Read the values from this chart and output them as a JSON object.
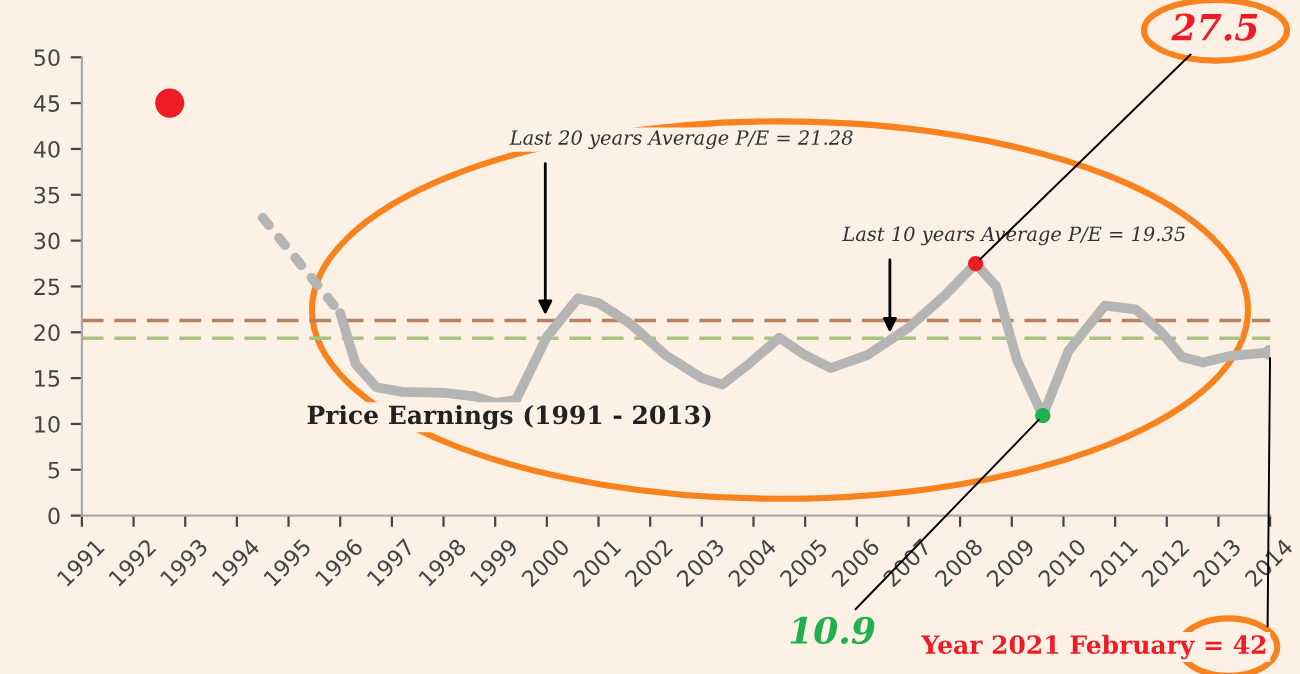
{
  "chart_data": {
    "type": "line",
    "title": "Price Earnings (1991 - 2013)",
    "xlim": [
      1991,
      2014
    ],
    "xticks": [
      1991,
      1992,
      1993,
      1994,
      1995,
      1996,
      1997,
      1998,
      1999,
      2000,
      2001,
      2002,
      2003,
      2004,
      2005,
      2006,
      2007,
      2008,
      2009,
      2010,
      2011,
      2012,
      2013,
      2014
    ],
    "ylim": [
      0,
      50
    ],
    "yticks": [
      0,
      5,
      10,
      15,
      20,
      25,
      30,
      35,
      40,
      45,
      50
    ],
    "grid": false,
    "series": [
      {
        "color": "#b5b5b5",
        "line_style": "dotted",
        "x": [
          1994.5,
          1996.0
        ],
        "values": [
          32.5,
          22.1
        ]
      },
      {
        "color": "#b5b5b5",
        "line_style": "solid",
        "x": [
          1996.0,
          1996.3,
          1996.7,
          1997.2,
          1998.0,
          1998.6,
          1999.0,
          1999.4,
          2000.0,
          2000.6,
          2001.0,
          2001.6,
          2002.3,
          2003.0,
          2003.4,
          2003.9,
          2004.5,
          2005.0,
          2005.5,
          2006.2,
          2007.0,
          2007.7,
          2008.3,
          2008.7,
          2009.1,
          2009.6,
          2010.1,
          2010.8,
          2011.4,
          2011.9,
          2012.3,
          2012.7,
          2013.2,
          2014.0
        ],
        "values": [
          22.1,
          16.5,
          14.0,
          13.5,
          13.4,
          13.0,
          12.3,
          12.6,
          19.5,
          23.7,
          23.2,
          21.0,
          17.5,
          15.0,
          14.3,
          16.5,
          19.4,
          17.5,
          16.1,
          17.5,
          20.5,
          24.0,
          27.5,
          25.0,
          17.0,
          10.9,
          18.0,
          22.9,
          22.5,
          20.0,
          17.3,
          16.7,
          17.4,
          17.8
        ]
      },
      {
        "type": "scatter",
        "color": "#ee1c25",
        "x": [
          1992.7
        ],
        "values": [
          45
        ]
      },
      {
        "type": "scatter",
        "color": "#ee1c25",
        "x": [
          2008.3
        ],
        "values": [
          27.5
        ]
      },
      {
        "type": "scatter",
        "color": "#22b04c",
        "x": [
          2009.6
        ],
        "values": [
          10.9
        ]
      },
      {
        "type": "scatter",
        "color": "#b5b5b5",
        "x": [
          2014.0
        ],
        "values": [
          17.8
        ]
      }
    ],
    "ref_lines": [
      {
        "axis": "y",
        "value": 21.28,
        "label": "Last 20 years Average P/E = 21.28",
        "color": "#b9805e",
        "line_style": "dashed"
      },
      {
        "axis": "y",
        "value": 19.35,
        "label": "Last 10 years Average P/E = 19.35",
        "color": "#a9c47f",
        "line_style": "dashed"
      }
    ],
    "annotations": [
      {
        "text": "27.5",
        "x": 2008.3,
        "y": 27.5
      },
      {
        "text": "10.9",
        "x": 2009.6,
        "y": 10.9
      },
      {
        "text": "Year 2021 February = 42",
        "x": 2014.0,
        "y": 17.8
      }
    ]
  }
}
